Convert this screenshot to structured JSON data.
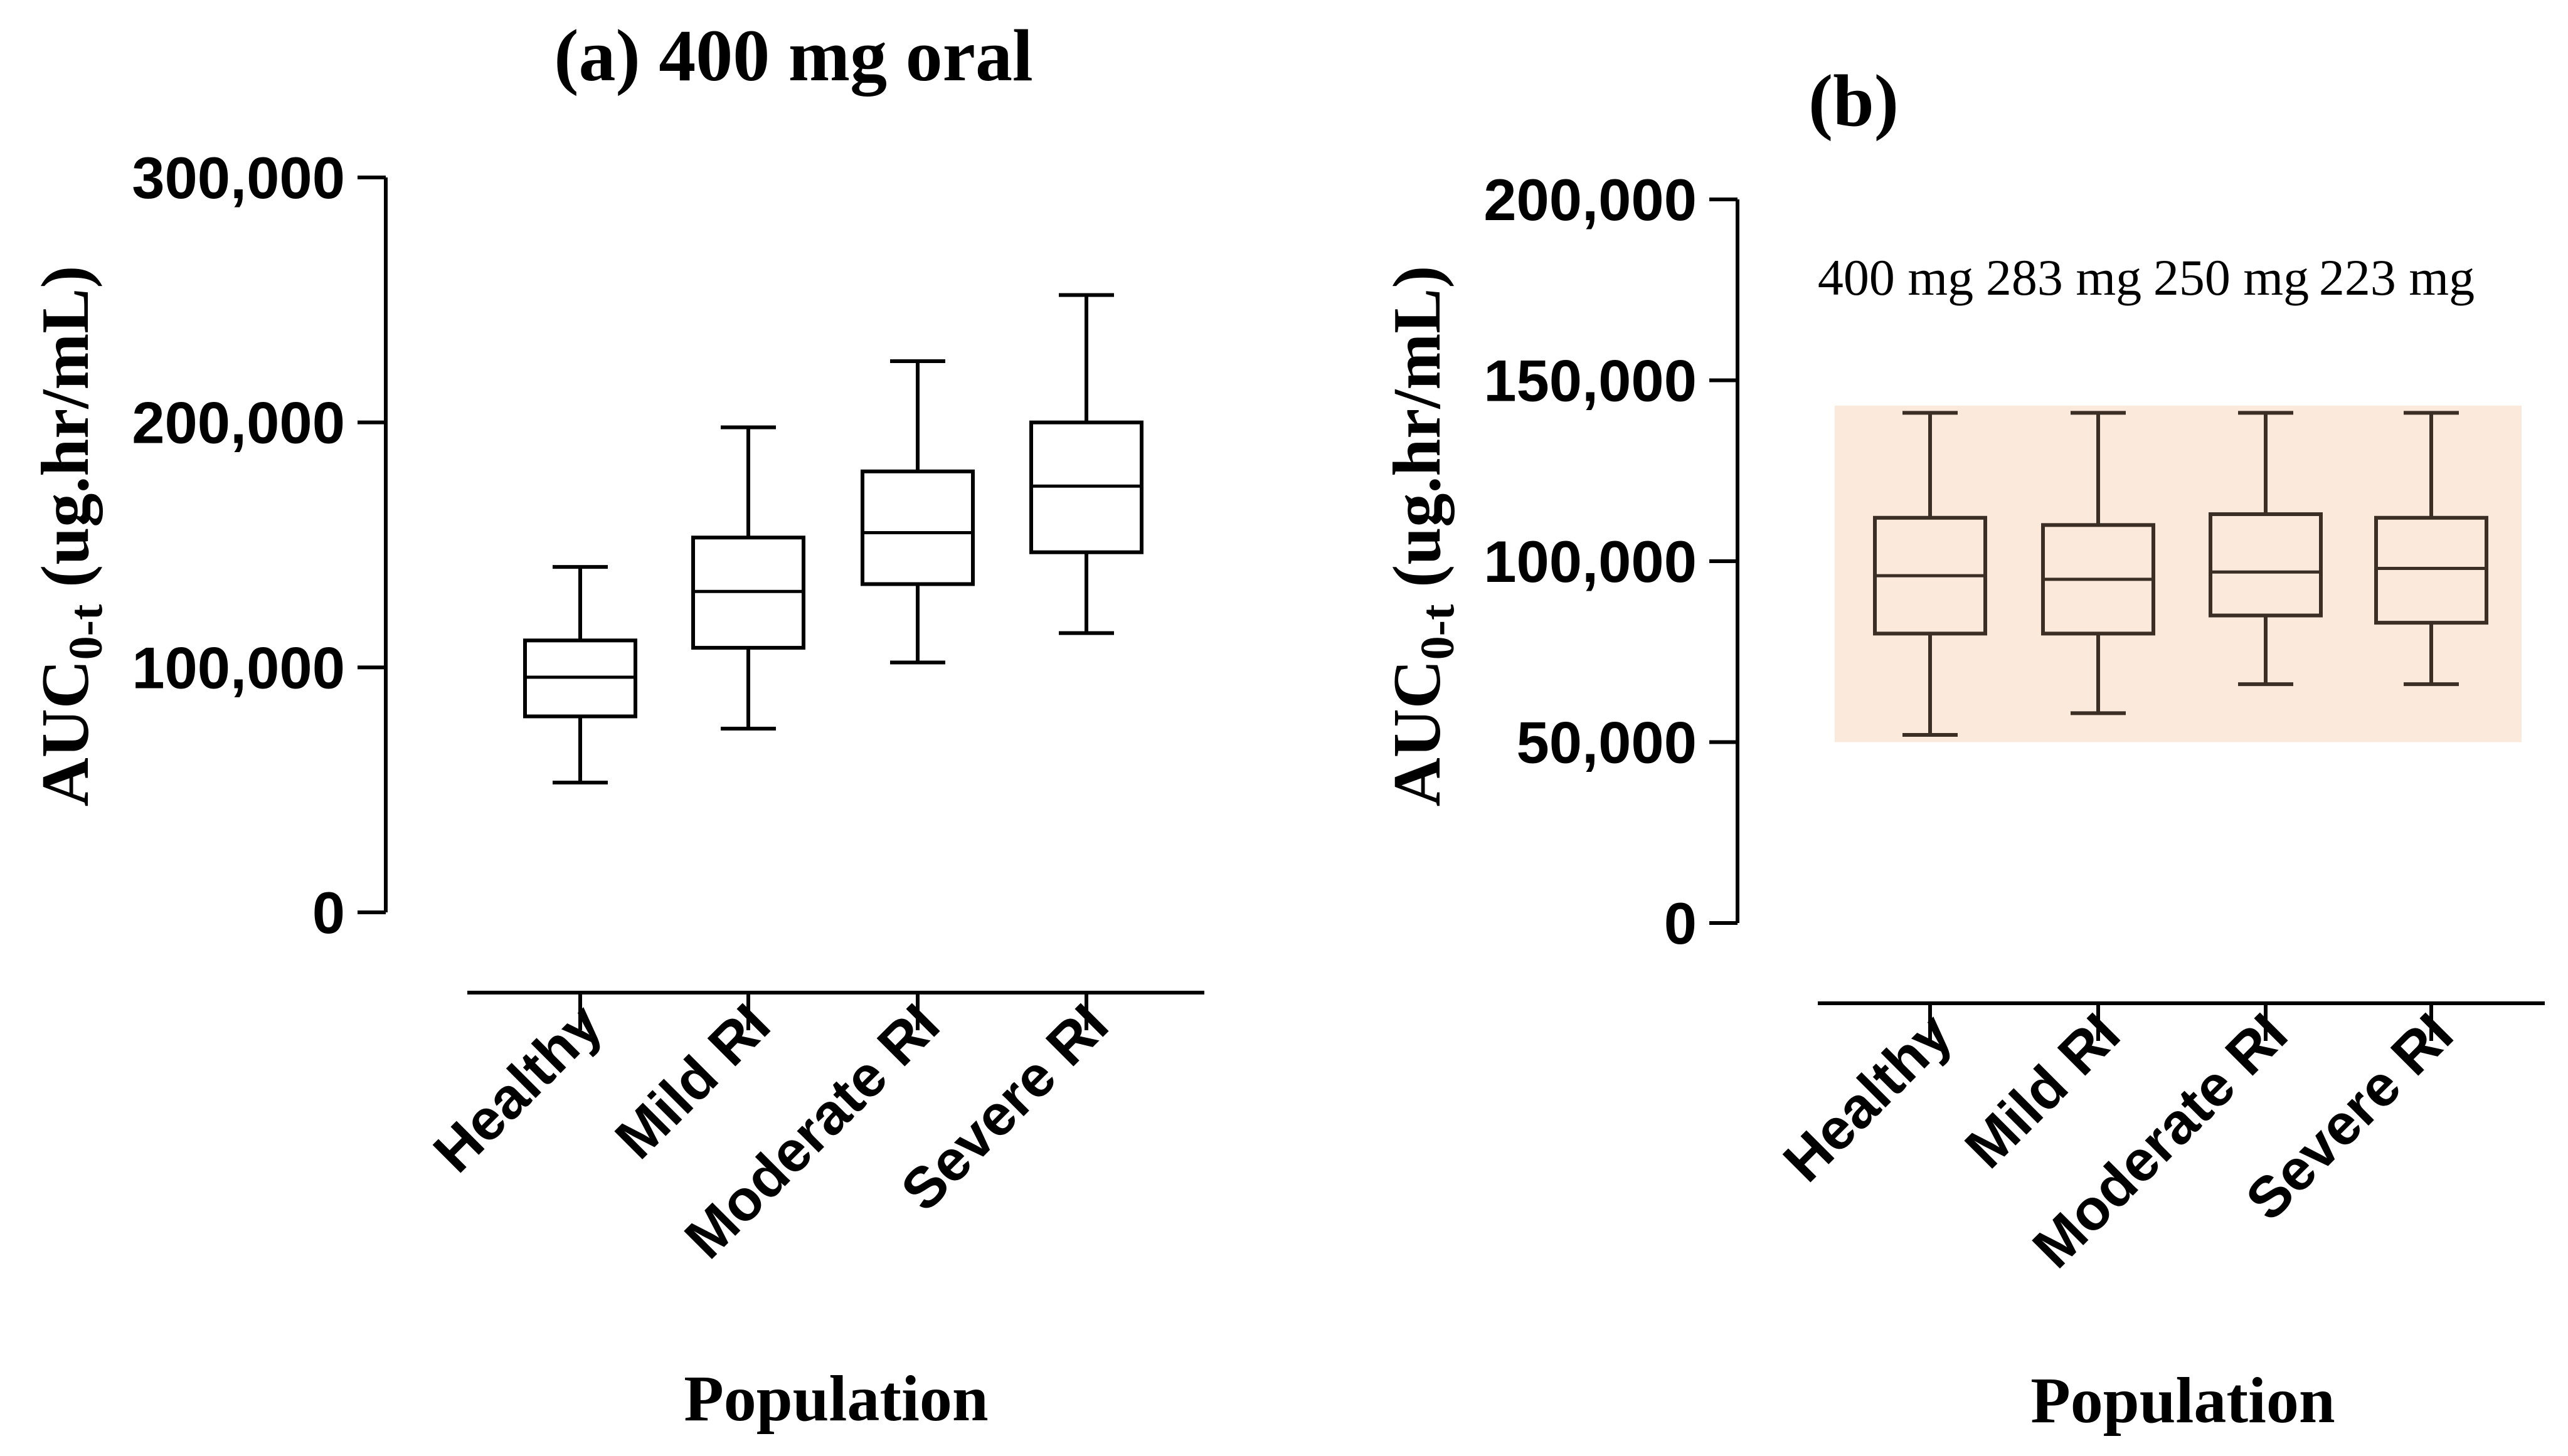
{
  "chart_data": [
    {
      "type": "box",
      "title": "(a) 400 mg oral",
      "xlabel": "Population",
      "ylabel_main": "AUC",
      "ylabel_sub": "0-t",
      "ylabel_rest": " (ug.hr/mL)",
      "ylim": [
        0,
        300000
      ],
      "yticks": [
        0,
        100000,
        200000,
        300000
      ],
      "ytick_labels": [
        "0",
        "100,000",
        "200,000",
        "300,000"
      ],
      "categories": [
        "Healthy",
        "Mild RI",
        "Moderate RI",
        "Severe RI"
      ],
      "boxes": [
        {
          "min": 53000,
          "q1": 80000,
          "median": 96000,
          "q3": 111000,
          "max": 141000
        },
        {
          "min": 75000,
          "q1": 108000,
          "median": 131000,
          "q3": 153000,
          "max": 198000
        },
        {
          "min": 102000,
          "q1": 134000,
          "median": 155000,
          "q3": 180000,
          "max": 225000
        },
        {
          "min": 114000,
          "q1": 147000,
          "median": 174000,
          "q3": 200000,
          "max": 252000
        }
      ]
    },
    {
      "type": "box",
      "title": "(b)",
      "xlabel": "Population",
      "ylabel_main": "AUC",
      "ylabel_sub": "0-t",
      "ylabel_rest": " (ug.hr/mL)",
      "ylim": [
        0,
        200000
      ],
      "yticks": [
        0,
        50000,
        100000,
        150000,
        200000
      ],
      "ytick_labels": [
        "0",
        "50,000",
        "100,000",
        "150,000",
        "200,000"
      ],
      "categories": [
        "Healthy",
        "Mild RI",
        "Moderate RI",
        "Severe RI"
      ],
      "dose_labels": [
        "400 mg",
        "283 mg",
        "250 mg",
        "223 mg"
      ],
      "shaded_range": [
        50000,
        143000
      ],
      "shade_color": "#fbe9dc",
      "box_color": "#3b2f25",
      "boxes": [
        {
          "min": 52000,
          "q1": 80000,
          "median": 96000,
          "q3": 112000,
          "max": 141000
        },
        {
          "min": 58000,
          "q1": 80000,
          "median": 95000,
          "q3": 110000,
          "max": 141000
        },
        {
          "min": 66000,
          "q1": 85000,
          "median": 97000,
          "q3": 113000,
          "max": 141000
        },
        {
          "min": 66000,
          "q1": 83000,
          "median": 98000,
          "q3": 112000,
          "max": 141000
        }
      ]
    }
  ]
}
